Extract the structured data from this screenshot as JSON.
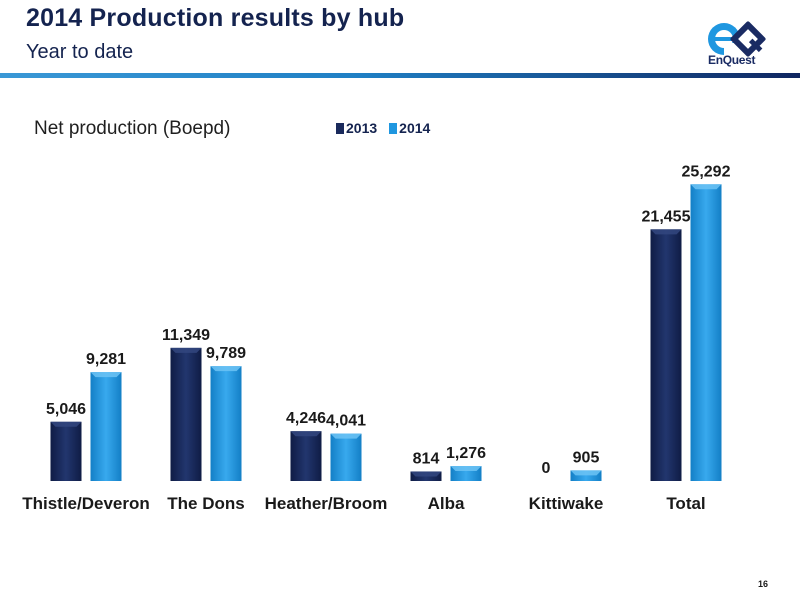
{
  "header": {
    "title": "2014 Production results by hub",
    "subtitle": "Year to date",
    "logo_text": "EnQuest"
  },
  "colors": {
    "title": "#14234f",
    "series_2013": "#1a2a5c",
    "series_2014": "#1f97e0",
    "rule_light": "#3a98d6",
    "rule_dark": "#102660"
  },
  "chart_data": {
    "type": "bar",
    "title": "Net production (Boepd)",
    "categories": [
      "Thistle/Deveron",
      "The Dons",
      "Heather/Broom",
      "Alba",
      "Kittiwake",
      "Total"
    ],
    "series": [
      {
        "name": "2013",
        "values": [
          5046,
          11349,
          4246,
          814,
          0,
          21455
        ],
        "labels": [
          "5,046",
          "11,349",
          "4,246",
          "814",
          "0",
          "21,455"
        ]
      },
      {
        "name": "2014",
        "values": [
          9281,
          9789,
          4041,
          1276,
          905,
          25292
        ],
        "labels": [
          "9,281",
          "9,789",
          "4,041",
          "1,276",
          "905",
          "25,292"
        ]
      }
    ],
    "ylim": [
      0,
      26000
    ],
    "legend": "top",
    "grid": false
  },
  "footer": {
    "page_number": "16"
  }
}
